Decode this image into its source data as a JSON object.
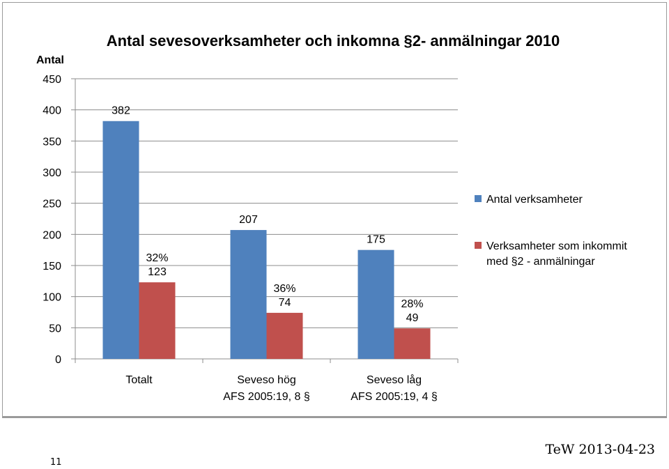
{
  "chart_data": {
    "type": "bar",
    "title": "Antal sevesoverksamheter och inkomna §2- anmälningar 2010",
    "ylabel": "Antal",
    "xlabel": "",
    "ylim": [
      0,
      450
    ],
    "yticks": [
      "0",
      "50",
      "100",
      "150",
      "200",
      "250",
      "300",
      "350",
      "400",
      "450"
    ],
    "categories": [
      [
        "Totalt"
      ],
      [
        "Seveso hög",
        "AFS 2005:19, 8 §"
      ],
      [
        "Seveso låg",
        "AFS 2005:19, 4 §"
      ]
    ],
    "series": [
      {
        "name": "Antal verksamheter",
        "color": "#4f81bd",
        "values": [
          382,
          207,
          175
        ],
        "labels": [
          [
            "382"
          ],
          [
            "207"
          ],
          [
            "175"
          ]
        ]
      },
      {
        "name": "Verksamheter som inkommit med §2 - anmälningar",
        "color": "#c0504d",
        "values": [
          123,
          74,
          49
        ],
        "labels": [
          [
            "32%",
            "123"
          ],
          [
            "36%",
            "74"
          ],
          [
            "28%",
            "49"
          ]
        ]
      }
    ],
    "legend_labels": [
      [
        "Antal verksamheter"
      ],
      [
        "Verksamheter som inkommit",
        "med §2 - anmälningar"
      ]
    ],
    "grid": true,
    "legend_position": "right"
  },
  "footer": {
    "page_number": "11",
    "author_date": "TeW 2013-04-23"
  }
}
